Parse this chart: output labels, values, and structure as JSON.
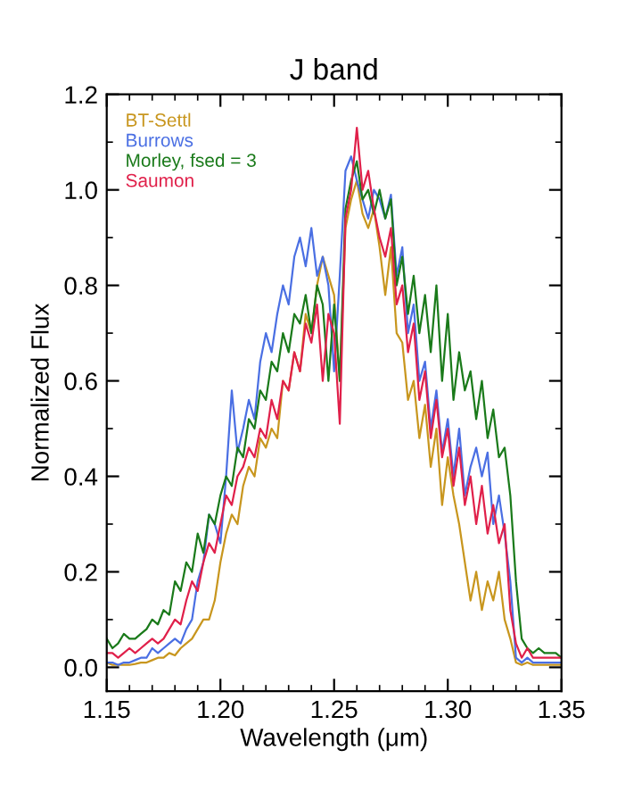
{
  "chart_data": {
    "type": "line",
    "title": "J band",
    "xlabel": "Wavelength (μm)",
    "ylabel": "Normalized Flux",
    "x": [
      1.15,
      1.1525,
      1.155,
      1.1575,
      1.16,
      1.1625,
      1.165,
      1.1675,
      1.17,
      1.1725,
      1.175,
      1.1775,
      1.18,
      1.1825,
      1.185,
      1.1875,
      1.19,
      1.1925,
      1.195,
      1.1975,
      1.2,
      1.2025,
      1.205,
      1.2075,
      1.21,
      1.2125,
      1.215,
      1.2175,
      1.22,
      1.2225,
      1.225,
      1.2275,
      1.23,
      1.2325,
      1.235,
      1.2375,
      1.24,
      1.2425,
      1.245,
      1.2475,
      1.25,
      1.2525,
      1.255,
      1.2575,
      1.26,
      1.2625,
      1.265,
      1.2675,
      1.27,
      1.2725,
      1.275,
      1.2775,
      1.28,
      1.2825,
      1.285,
      1.2875,
      1.29,
      1.2925,
      1.295,
      1.2975,
      1.3,
      1.3025,
      1.305,
      1.3075,
      1.31,
      1.3125,
      1.315,
      1.3175,
      1.32,
      1.3225,
      1.325,
      1.3275,
      1.33,
      1.3325,
      1.335,
      1.3375,
      1.34,
      1.3425,
      1.345,
      1.3475,
      1.35
    ],
    "series": [
      {
        "name": "BT-Settl",
        "color": "#c8961e",
        "values": [
          0.01,
          0.005,
          0.005,
          0.005,
          0.005,
          0.007,
          0.01,
          0.01,
          0.015,
          0.02,
          0.02,
          0.03,
          0.025,
          0.04,
          0.05,
          0.06,
          0.08,
          0.1,
          0.1,
          0.14,
          0.22,
          0.28,
          0.32,
          0.3,
          0.38,
          0.42,
          0.4,
          0.48,
          0.46,
          0.5,
          0.48,
          0.6,
          0.58,
          0.66,
          0.62,
          0.74,
          0.7,
          0.8,
          0.86,
          0.82,
          0.78,
          0.6,
          0.92,
          0.98,
          1.02,
          0.95,
          0.92,
          0.96,
          0.88,
          0.78,
          0.88,
          0.7,
          0.68,
          0.56,
          0.6,
          0.48,
          0.55,
          0.42,
          0.5,
          0.34,
          0.44,
          0.36,
          0.3,
          0.22,
          0.14,
          0.2,
          0.12,
          0.18,
          0.14,
          0.2,
          0.1,
          0.06,
          0.01,
          0.005,
          0.01,
          0.005,
          0.005,
          0.005,
          0.005,
          0.005,
          0.005
        ]
      },
      {
        "name": "Burrows",
        "color": "#4a6fe3",
        "values": [
          0.01,
          0.01,
          0.005,
          0.01,
          0.01,
          0.015,
          0.02,
          0.02,
          0.04,
          0.03,
          0.04,
          0.05,
          0.06,
          0.05,
          0.08,
          0.1,
          0.18,
          0.22,
          0.32,
          0.3,
          0.26,
          0.4,
          0.58,
          0.45,
          0.5,
          0.56,
          0.52,
          0.64,
          0.7,
          0.66,
          0.74,
          0.8,
          0.76,
          0.86,
          0.9,
          0.84,
          0.92,
          0.82,
          0.86,
          0.8,
          0.62,
          0.82,
          1.04,
          1.07,
          1.02,
          0.98,
          0.94,
          1.0,
          0.98,
          0.94,
          0.99,
          0.82,
          0.88,
          0.7,
          0.76,
          0.6,
          0.64,
          0.5,
          0.58,
          0.45,
          0.52,
          0.4,
          0.5,
          0.36,
          0.42,
          0.46,
          0.4,
          0.45,
          0.3,
          0.36,
          0.28,
          0.18,
          0.02,
          0.01,
          0.02,
          0.01,
          0.01,
          0.01,
          0.01,
          0.01,
          0.01
        ]
      },
      {
        "name": "Morley, fsed = 3",
        "color": "#1a7a1a",
        "values": [
          0.06,
          0.04,
          0.05,
          0.07,
          0.06,
          0.06,
          0.07,
          0.08,
          0.1,
          0.09,
          0.12,
          0.11,
          0.18,
          0.16,
          0.22,
          0.2,
          0.28,
          0.24,
          0.32,
          0.3,
          0.36,
          0.4,
          0.38,
          0.46,
          0.44,
          0.52,
          0.5,
          0.58,
          0.56,
          0.64,
          0.62,
          0.7,
          0.66,
          0.74,
          0.72,
          0.78,
          0.7,
          0.8,
          0.76,
          0.6,
          0.76,
          0.6,
          0.96,
          1.02,
          1.06,
          0.98,
          1.0,
          0.95,
          1.0,
          0.94,
          0.98,
          0.8,
          0.86,
          0.74,
          0.82,
          0.7,
          0.78,
          0.66,
          0.8,
          0.6,
          0.74,
          0.56,
          0.66,
          0.58,
          0.62,
          0.52,
          0.6,
          0.48,
          0.54,
          0.44,
          0.46,
          0.36,
          0.18,
          0.06,
          0.04,
          0.03,
          0.04,
          0.03,
          0.03,
          0.03,
          0.02
        ]
      },
      {
        "name": "Saumon",
        "color": "#e0204a",
        "values": [
          0.03,
          0.03,
          0.02,
          0.03,
          0.04,
          0.03,
          0.04,
          0.05,
          0.06,
          0.05,
          0.06,
          0.08,
          0.1,
          0.09,
          0.14,
          0.18,
          0.16,
          0.22,
          0.26,
          0.24,
          0.3,
          0.36,
          0.34,
          0.4,
          0.42,
          0.46,
          0.44,
          0.5,
          0.48,
          0.56,
          0.52,
          0.6,
          0.58,
          0.66,
          0.62,
          0.72,
          0.68,
          0.76,
          0.6,
          0.74,
          0.7,
          0.51,
          0.94,
          1.0,
          1.13,
          1.0,
          1.04,
          0.96,
          0.9,
          0.86,
          0.92,
          0.76,
          0.8,
          0.66,
          0.72,
          0.56,
          0.62,
          0.48,
          0.56,
          0.44,
          0.5,
          0.38,
          0.46,
          0.34,
          0.4,
          0.3,
          0.38,
          0.28,
          0.34,
          0.26,
          0.3,
          0.12,
          0.05,
          0.02,
          0.04,
          0.02,
          0.02,
          0.02,
          0.02,
          0.02,
          0.02
        ]
      }
    ],
    "xlim": [
      1.15,
      1.35
    ],
    "xticks": [
      1.15,
      {
        "value": 1.2,
        "label": "1.20"
      },
      1.25,
      {
        "value": 1.3,
        "label": "1.30"
      },
      1.35
    ],
    "ylim": [
      -0.05,
      1.2
    ],
    "yticks": [
      {
        "value": 0,
        "label": "0.0"
      },
      0.2,
      0.4,
      0.6,
      0.8,
      {
        "value": 1,
        "label": "1.0"
      },
      1.2
    ],
    "legend": "top left",
    "grid": false,
    "marker": "none",
    "line_style": "solid"
  }
}
